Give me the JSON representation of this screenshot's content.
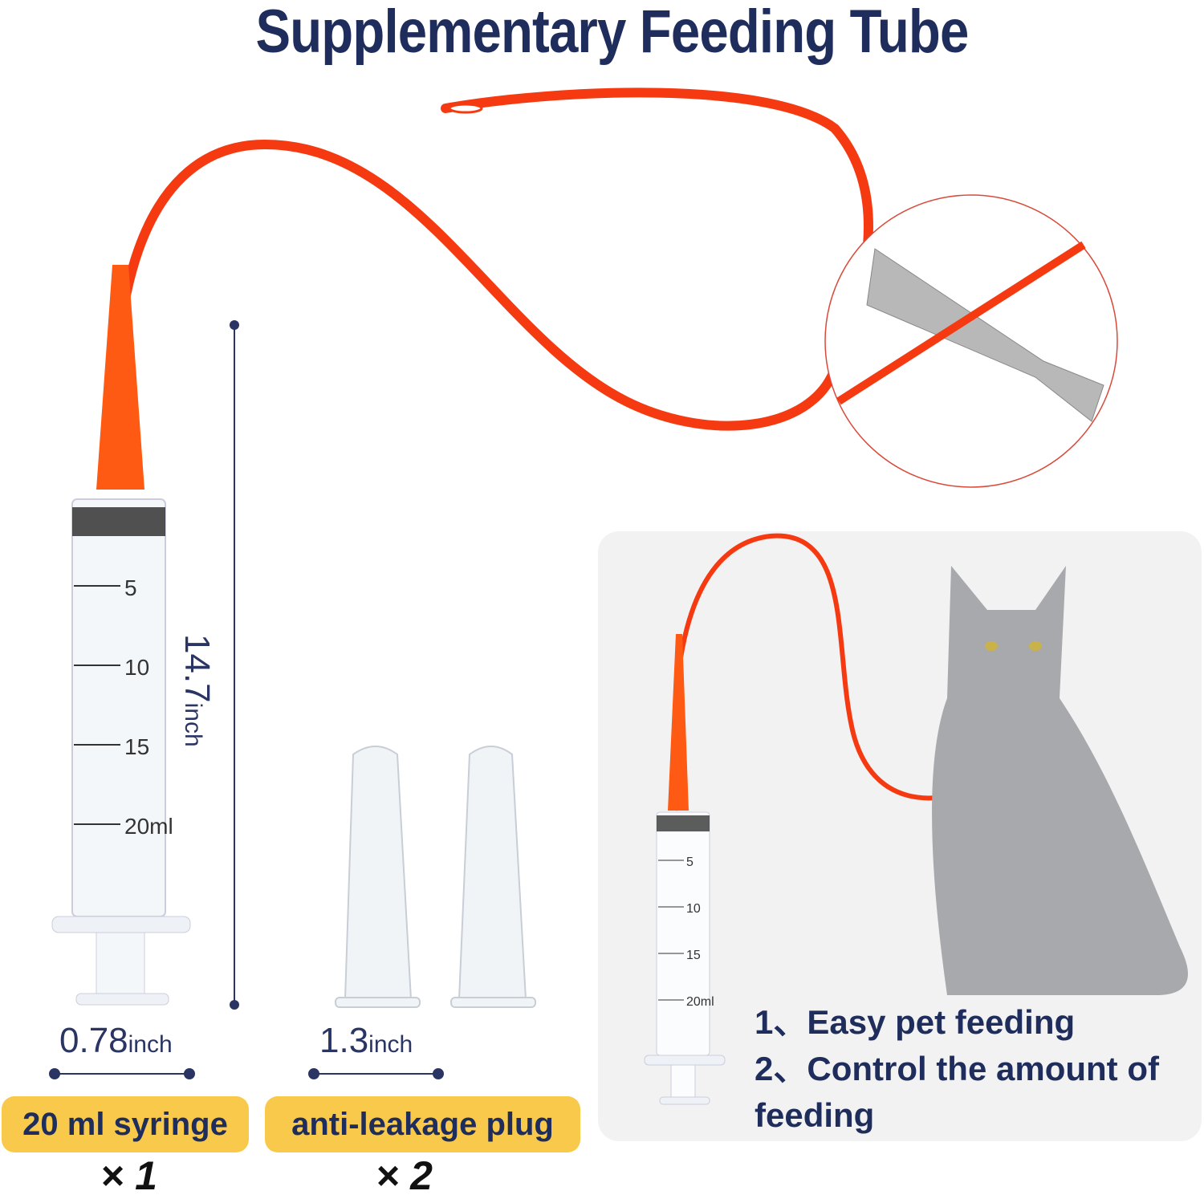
{
  "title": "Supplementary Feeding Tube",
  "tube_length": {
    "value": "14.7",
    "unit": "inch"
  },
  "syringe": {
    "width_value": "0.78",
    "unit": "inch",
    "label": "20 ml syringe",
    "quantity": "× 1",
    "scale": [
      "5",
      "10",
      "15",
      "20ml"
    ]
  },
  "plug": {
    "width_value": "1.3",
    "unit": "inch",
    "label": "anti-leakage plug",
    "quantity": "× 2"
  },
  "features": [
    "1、Easy pet feeding",
    "2、Control the amount of",
    "feeding"
  ],
  "small_syringe_scale": [
    "5",
    "10",
    "15",
    "20ml"
  ],
  "colors": {
    "title": "#1f2d5c",
    "badge": "#f8c94a",
    "tube": "#ff3b10",
    "panel": "#f2f2f2"
  }
}
